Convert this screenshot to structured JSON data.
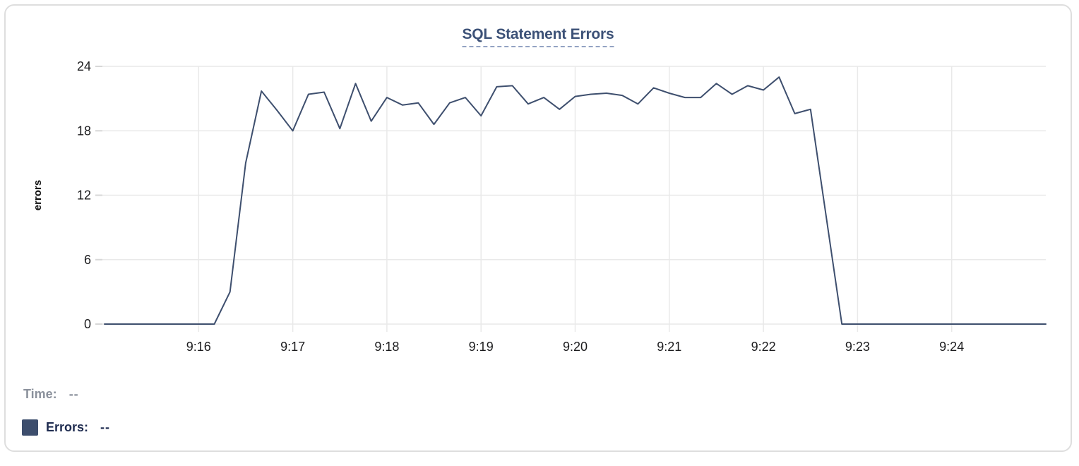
{
  "chart_data": {
    "type": "line",
    "title": "SQL Statement Errors",
    "xlabel": "",
    "ylabel": "errors",
    "ylim": [
      0,
      24
    ],
    "y_ticks": [
      0,
      6,
      12,
      18,
      24
    ],
    "x_tick_labels": [
      "9:16",
      "9:17",
      "9:18",
      "9:19",
      "9:20",
      "9:21",
      "9:22",
      "9:23",
      "9:24"
    ],
    "grid": true,
    "legend_position": "bottom-left",
    "interval_seconds": 10,
    "series": [
      {
        "name": "Errors",
        "x": [
          "9:15:00",
          "9:15:10",
          "9:15:20",
          "9:15:30",
          "9:15:40",
          "9:15:50",
          "9:16:00",
          "9:16:10",
          "9:16:20",
          "9:16:30",
          "9:16:40",
          "9:16:50",
          "9:17:00",
          "9:17:10",
          "9:17:20",
          "9:17:30",
          "9:17:40",
          "9:17:50",
          "9:18:00",
          "9:18:10",
          "9:18:20",
          "9:18:30",
          "9:18:40",
          "9:18:50",
          "9:19:00",
          "9:19:10",
          "9:19:20",
          "9:19:30",
          "9:19:40",
          "9:19:50",
          "9:20:00",
          "9:20:10",
          "9:20:20",
          "9:20:30",
          "9:20:40",
          "9:20:50",
          "9:21:00",
          "9:21:10",
          "9:21:20",
          "9:21:30",
          "9:21:40",
          "9:21:50",
          "9:22:00",
          "9:22:10",
          "9:22:20",
          "9:22:30",
          "9:22:40",
          "9:22:50",
          "9:23:00",
          "9:23:10",
          "9:23:20",
          "9:23:30",
          "9:23:40",
          "9:23:50",
          "9:24:00",
          "9:24:10",
          "9:24:20",
          "9:24:30",
          "9:24:40",
          "9:24:50",
          "9:25:00"
        ],
        "values": [
          0,
          0,
          0,
          0,
          0,
          0,
          0,
          0,
          3,
          15,
          21.7,
          19.9,
          18,
          21.4,
          21.6,
          18.2,
          22.4,
          18.9,
          21.1,
          20.4,
          20.6,
          18.6,
          20.6,
          21.1,
          19.4,
          22.1,
          22.2,
          20.5,
          21.1,
          20.0,
          21.2,
          21.4,
          21.5,
          21.3,
          20.5,
          22.0,
          21.5,
          21.1,
          21.1,
          22.4,
          21.4,
          22.2,
          21.8,
          23.0,
          19.6,
          20.0,
          10,
          0,
          0,
          0,
          0,
          0,
          0,
          0,
          0,
          0,
          0,
          0,
          0,
          0,
          0
        ]
      }
    ]
  },
  "tooltip": {
    "time_label": "Time:",
    "time_value": "--",
    "errors_label": "Errors:",
    "errors_value": "--"
  },
  "colors": {
    "line": "#3e4f6e",
    "title": "#3c5177",
    "title_underline": "#93a3c3",
    "grid": "#e9e9e9",
    "tick": "#d7d7d7",
    "axis_text": "#1c1c1e",
    "axis_label_text": "#111111",
    "time_label": "#8b919c",
    "errors_label": "#1f2c50",
    "legend_swatch": "#3d4e6d",
    "card_border": "#dedede"
  }
}
